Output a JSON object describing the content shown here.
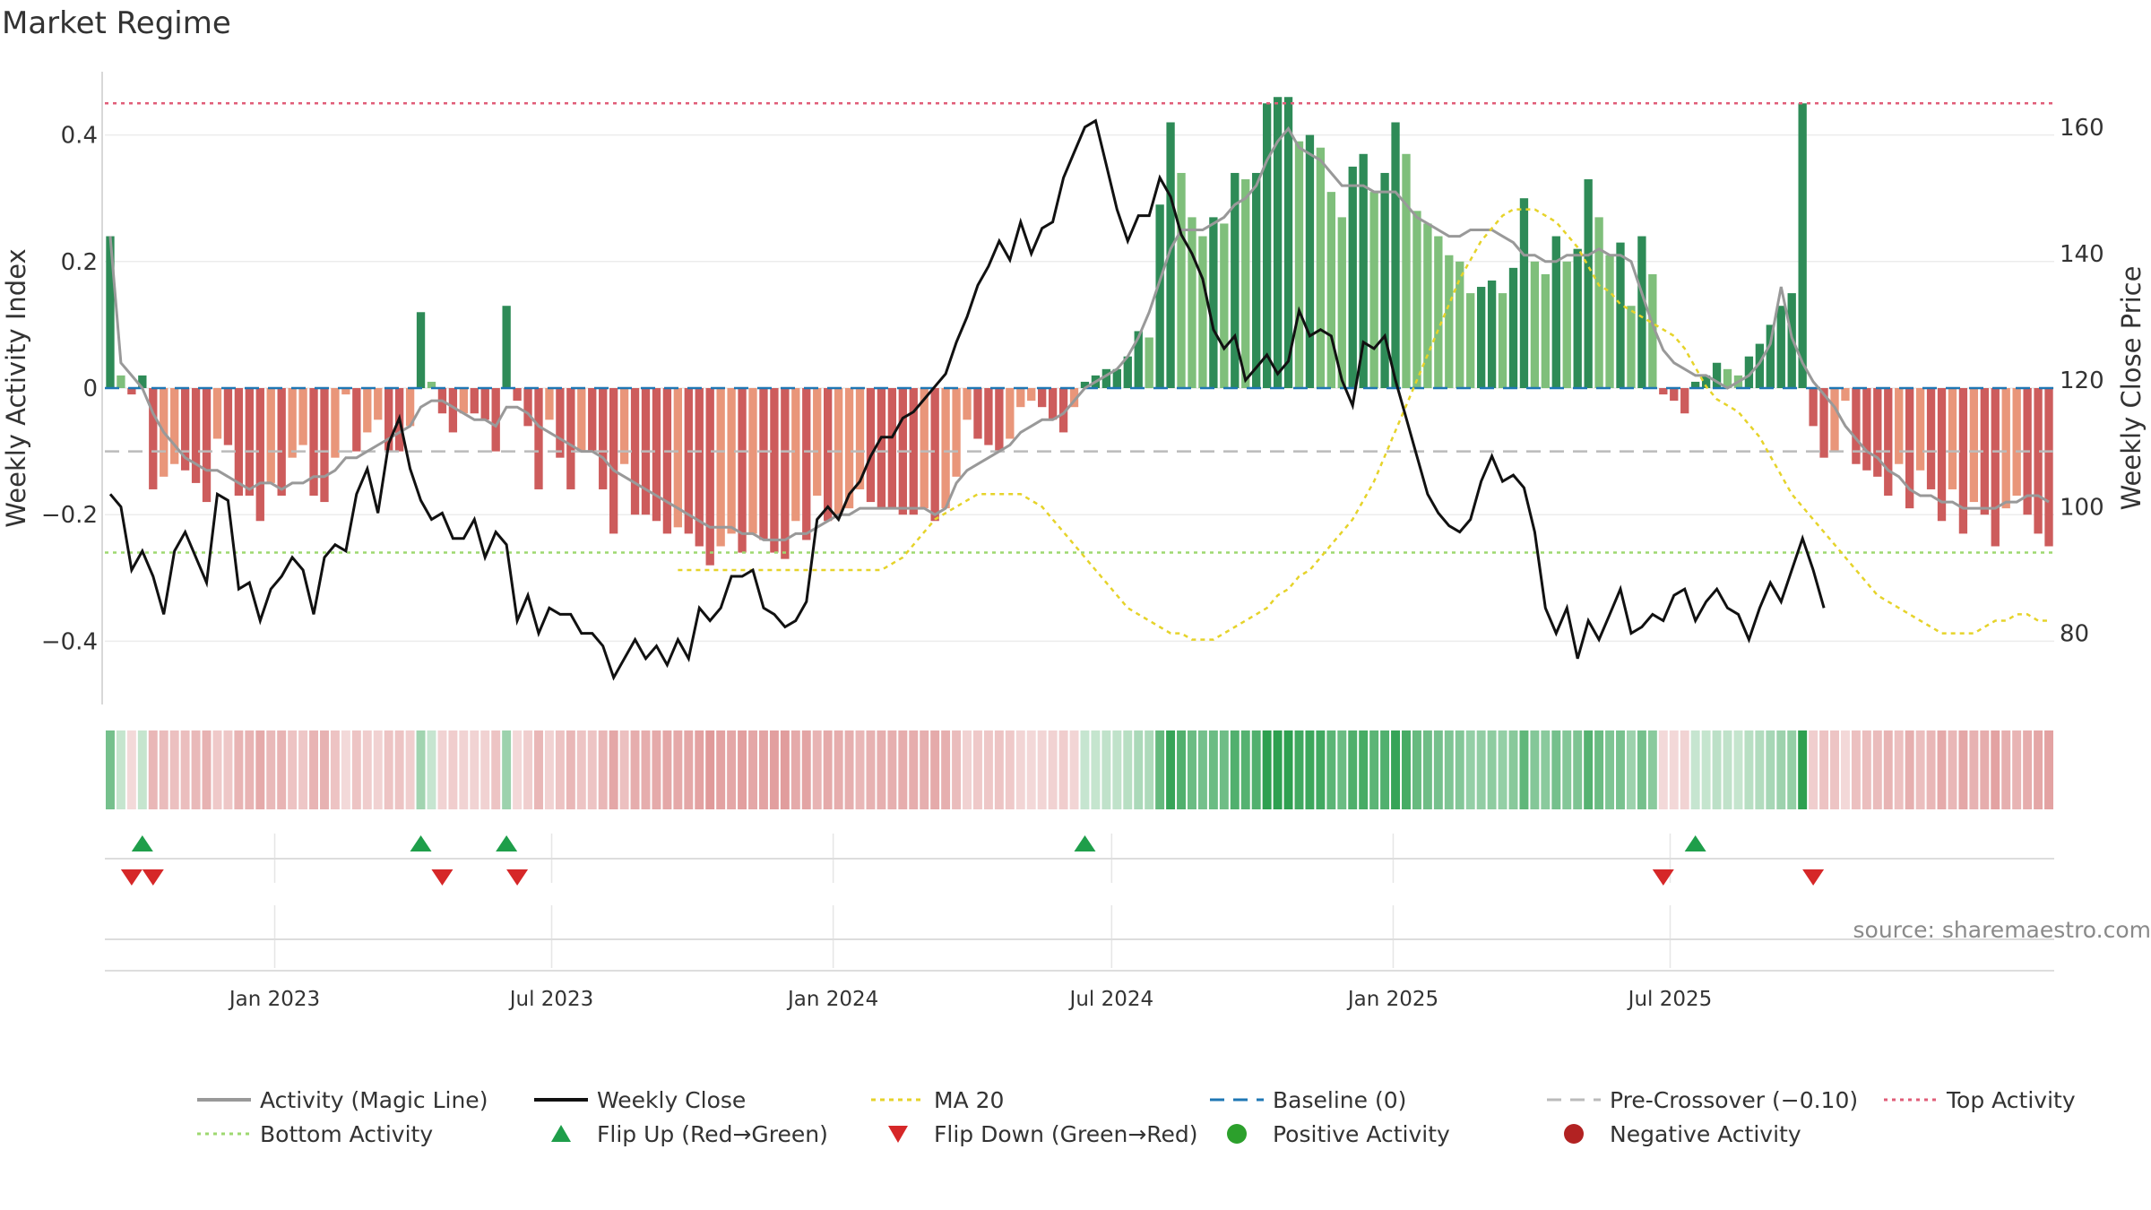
{
  "title": "Market Regime",
  "source": "source: sharemaestro.com",
  "colors": {
    "dark_green": "#2e8b57",
    "light_green": "#7fbf7b",
    "dark_red": "#cd5c5c",
    "light_red": "#e9967a",
    "magic_line": "#999999",
    "close_line": "#111111",
    "ma": "#e6d32a",
    "baseline": "#1f77b4",
    "pre_crossover": "#bbbbbb",
    "top": "#e05d78",
    "bottom": "#9ed870",
    "flip_up": "#1e9e4a",
    "flip_down": "#d62728"
  },
  "legend": [
    {
      "key": "magic",
      "label": "Activity (Magic Line)"
    },
    {
      "key": "close",
      "label": "Weekly Close"
    },
    {
      "key": "ma",
      "label": "MA 20"
    },
    {
      "key": "baseline",
      "label": "Baseline (0)"
    },
    {
      "key": "pre",
      "label": "Pre-Crossover (−0.10)"
    },
    {
      "key": "top",
      "label": "Top Activity"
    },
    {
      "key": "bottom",
      "label": "Bottom Activity"
    },
    {
      "key": "up",
      "label": "Flip Up (Red→Green)"
    },
    {
      "key": "down",
      "label": "Flip Down (Green→Red)"
    },
    {
      "key": "pos",
      "label": "Positive Activity"
    },
    {
      "key": "neg",
      "label": "Negative Activity"
    }
  ],
  "chart_data": {
    "type": "bar",
    "title": "Market Regime",
    "ylabel": "Weekly Activity Index",
    "y2label": "Weekly Close Price",
    "ylim": [
      -0.5,
      0.5
    ],
    "y2lim": [
      68.75,
      168.75
    ],
    "yticks": [
      {
        "v": 0.4,
        "t": "0.4"
      },
      {
        "v": 0.2,
        "t": "0.2"
      },
      {
        "v": 0,
        "t": "0"
      },
      {
        "v": -0.2,
        "t": "−0.2"
      },
      {
        "v": -0.4,
        "t": "−0.4"
      }
    ],
    "y2ticks": [
      {
        "v": 160,
        "t": "160"
      },
      {
        "v": 140,
        "t": "140"
      },
      {
        "v": 120,
        "t": "120"
      },
      {
        "v": 100,
        "t": "100"
      },
      {
        "v": 80,
        "t": "80"
      }
    ],
    "start_date": "2022-09-12",
    "xticks": [
      {
        "date": "2023-01-01",
        "label": "Jan 2023"
      },
      {
        "date": "2023-07-01",
        "label": "Jul 2023"
      },
      {
        "date": "2024-01-01",
        "label": "Jan 2024"
      },
      {
        "date": "2024-07-01",
        "label": "Jul 2024"
      },
      {
        "date": "2025-01-01",
        "label": "Jan 2025"
      },
      {
        "date": "2025-07-01",
        "label": "Jul 2025"
      }
    ],
    "reference_lines": {
      "top": 0.45,
      "bottom": -0.26,
      "pre_crossover": -0.1,
      "baseline": 0
    },
    "activity": [
      0.24,
      0.02,
      -0.01,
      0.02,
      -0.16,
      -0.14,
      -0.12,
      -0.13,
      -0.15,
      -0.18,
      -0.08,
      -0.09,
      -0.17,
      -0.17,
      -0.21,
      -0.15,
      -0.17,
      -0.11,
      -0.09,
      -0.17,
      -0.18,
      -0.11,
      -0.01,
      -0.1,
      -0.07,
      -0.05,
      -0.1,
      -0.1,
      -0.06,
      0.12,
      0.01,
      -0.04,
      -0.07,
      -0.04,
      -0.04,
      -0.05,
      -0.1,
      0.13,
      -0.02,
      -0.06,
      -0.16,
      -0.05,
      -0.11,
      -0.16,
      -0.1,
      -0.1,
      -0.16,
      -0.23,
      -0.12,
      -0.2,
      -0.2,
      -0.21,
      -0.23,
      -0.22,
      -0.23,
      -0.25,
      -0.28,
      -0.25,
      -0.23,
      -0.26,
      -0.23,
      -0.24,
      -0.26,
      -0.27,
      -0.21,
      -0.24,
      -0.17,
      -0.21,
      -0.2,
      -0.19,
      -0.16,
      -0.18,
      -0.19,
      -0.19,
      -0.2,
      -0.2,
      -0.19,
      -0.21,
      -0.19,
      -0.14,
      -0.05,
      -0.08,
      -0.09,
      -0.1,
      -0.08,
      -0.03,
      -0.02,
      -0.03,
      -0.05,
      -0.07,
      -0.03,
      0.01,
      0.02,
      0.03,
      0.03,
      0.05,
      0.09,
      0.08,
      0.29,
      0.42,
      0.34,
      0.27,
      0.24,
      0.27,
      0.26,
      0.34,
      0.33,
      0.34,
      0.45,
      0.46,
      0.46,
      0.39,
      0.4,
      0.38,
      0.31,
      0.27,
      0.35,
      0.37,
      0.31,
      0.34,
      0.42,
      0.37,
      0.28,
      0.26,
      0.24,
      0.21,
      0.2,
      0.15,
      0.16,
      0.17,
      0.15,
      0.19,
      0.3,
      0.2,
      0.18,
      0.24,
      0.2,
      0.22,
      0.33,
      0.27,
      0.21,
      0.23,
      0.13,
      0.24,
      0.18,
      -0.01,
      -0.02,
      -0.04,
      0.01,
      0.02,
      0.04,
      0.03,
      0.02,
      0.05,
      0.07,
      0.1,
      0.13,
      0.15,
      0.45,
      -0.06,
      -0.11,
      -0.1,
      -0.02,
      -0.12,
      -0.13,
      -0.14,
      -0.17,
      -0.12,
      -0.19,
      -0.13,
      -0.16,
      -0.21,
      -0.16,
      -0.23,
      -0.18,
      -0.2,
      -0.25,
      -0.19,
      -0.17,
      -0.2,
      -0.23,
      -0.25
    ],
    "magic_line": [
      0.24,
      0.04,
      0.02,
      0.0,
      -0.04,
      -0.07,
      -0.09,
      -0.11,
      -0.12,
      -0.13,
      -0.13,
      -0.14,
      -0.15,
      -0.16,
      -0.15,
      -0.15,
      -0.16,
      -0.15,
      -0.15,
      -0.14,
      -0.14,
      -0.13,
      -0.11,
      -0.11,
      -0.1,
      -0.09,
      -0.08,
      -0.07,
      -0.06,
      -0.03,
      -0.02,
      -0.02,
      -0.03,
      -0.04,
      -0.05,
      -0.05,
      -0.06,
      -0.03,
      -0.03,
      -0.04,
      -0.06,
      -0.07,
      -0.08,
      -0.09,
      -0.1,
      -0.1,
      -0.11,
      -0.13,
      -0.14,
      -0.15,
      -0.16,
      -0.17,
      -0.18,
      -0.19,
      -0.2,
      -0.21,
      -0.22,
      -0.22,
      -0.22,
      -0.23,
      -0.23,
      -0.24,
      -0.24,
      -0.24,
      -0.23,
      -0.23,
      -0.22,
      -0.21,
      -0.2,
      -0.2,
      -0.19,
      -0.19,
      -0.19,
      -0.19,
      -0.19,
      -0.19,
      -0.19,
      -0.2,
      -0.19,
      -0.15,
      -0.13,
      -0.12,
      -0.11,
      -0.1,
      -0.09,
      -0.07,
      -0.06,
      -0.05,
      -0.05,
      -0.04,
      -0.02,
      0.0,
      0.01,
      0.02,
      0.03,
      0.05,
      0.08,
      0.12,
      0.17,
      0.22,
      0.25,
      0.25,
      0.25,
      0.26,
      0.27,
      0.29,
      0.3,
      0.32,
      0.36,
      0.39,
      0.41,
      0.38,
      0.37,
      0.36,
      0.34,
      0.32,
      0.32,
      0.32,
      0.31,
      0.31,
      0.31,
      0.29,
      0.27,
      0.26,
      0.25,
      0.24,
      0.24,
      0.25,
      0.25,
      0.25,
      0.24,
      0.23,
      0.21,
      0.21,
      0.2,
      0.2,
      0.21,
      0.21,
      0.21,
      0.22,
      0.21,
      0.21,
      0.2,
      0.15,
      0.1,
      0.06,
      0.04,
      0.03,
      0.02,
      0.02,
      0.01,
      0.0,
      0.01,
      0.02,
      0.04,
      0.07,
      0.16,
      0.08,
      0.04,
      0.01,
      -0.01,
      -0.03,
      -0.06,
      -0.08,
      -0.1,
      -0.11,
      -0.13,
      -0.14,
      -0.16,
      -0.17,
      -0.17,
      -0.18,
      -0.18,
      -0.19,
      -0.19,
      -0.19,
      -0.19,
      -0.18,
      -0.18,
      -0.17,
      -0.17,
      -0.18
    ],
    "weekly_close": [
      102,
      100,
      90,
      93,
      89,
      83,
      93,
      96,
      92,
      88,
      102,
      101,
      87,
      88,
      82,
      87,
      89,
      92,
      90,
      83,
      92,
      94,
      93,
      102,
      106,
      99,
      110,
      114,
      106,
      101,
      98,
      99,
      95,
      95,
      98,
      92,
      96,
      94,
      82,
      86,
      80,
      84,
      83,
      83,
      80,
      80,
      78,
      73,
      76,
      79,
      76,
      78,
      75,
      79,
      76,
      84,
      82,
      84,
      89,
      89,
      90,
      84,
      83,
      81,
      82,
      85,
      98,
      100,
      98,
      102,
      104,
      108,
      111,
      111,
      114,
      115,
      117,
      119,
      121,
      126,
      130,
      135,
      138,
      142,
      139,
      145,
      140,
      144,
      145,
      152,
      156,
      160,
      161,
      154,
      147,
      142,
      146,
      146,
      152,
      149,
      143,
      140,
      136,
      128,
      125,
      127,
      120,
      122,
      124,
      121,
      123,
      131,
      127,
      128,
      127,
      120,
      116,
      126,
      125,
      127,
      120,
      114,
      108,
      102,
      99,
      97,
      96,
      98,
      104,
      108,
      104,
      105,
      103,
      96,
      84,
      80,
      84,
      76,
      82,
      79,
      83,
      87,
      80,
      81,
      83,
      82,
      86,
      87,
      82,
      85,
      87,
      84,
      83,
      79,
      84,
      88,
      85,
      90,
      95,
      90,
      84
    ],
    "ma20": [
      90,
      90,
      90,
      90,
      90,
      90,
      90,
      90,
      90,
      90,
      90,
      90,
      90,
      90,
      90,
      90,
      90,
      90,
      90,
      90,
      91,
      92,
      94,
      96,
      98,
      99,
      100,
      101,
      102,
      102,
      102,
      102,
      102,
      101,
      100,
      98,
      96,
      94,
      92,
      90,
      88,
      86,
      84,
      83,
      82,
      81,
      80,
      80,
      79,
      79,
      79,
      80,
      81,
      82,
      83,
      84,
      86,
      87,
      89,
      90,
      92,
      94,
      96,
      98,
      101,
      104,
      108,
      112,
      116,
      120,
      124,
      128,
      132,
      136,
      139,
      142,
      144,
      146,
      147,
      147,
      147,
      146,
      145,
      143,
      141,
      138,
      135,
      134,
      132,
      131,
      130,
      129,
      128,
      127,
      125,
      122,
      119,
      117,
      116,
      115,
      113,
      111,
      108,
      105,
      102,
      100,
      98,
      96,
      94,
      92,
      90,
      88,
      86,
      85,
      84,
      83,
      82,
      81,
      80,
      80,
      80,
      80,
      81,
      82,
      82,
      83,
      83,
      82,
      82
    ]
  }
}
